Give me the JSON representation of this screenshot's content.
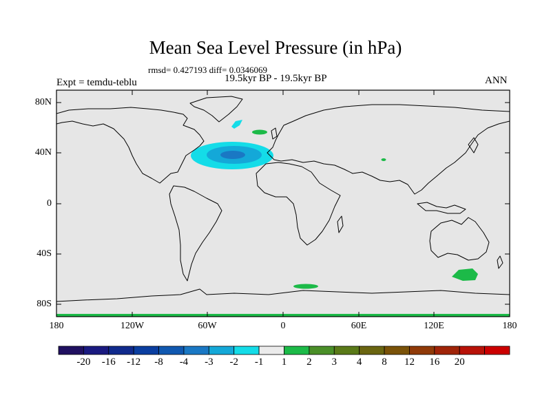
{
  "header": {
    "title": "Mean Sea Level Pressure (in hPa)",
    "stats": "rmsd= 0.427193 diff= 0.0346069",
    "subtitle": "19.5kyr BP - 19.5kyr BP",
    "experiment": "Expt = temdu-teblu",
    "season": "ANN"
  },
  "axes": {
    "y_ticks": [
      "80N",
      "40N",
      "0",
      "40S",
      "80S"
    ],
    "x_ticks": [
      "180",
      "120W",
      "60W",
      "0",
      "60E",
      "120E",
      "180"
    ]
  },
  "colorbar": {
    "colors": [
      "#201060",
      "#1a1a80",
      "#102a8c",
      "#0a3ea0",
      "#1058b0",
      "#1a78c4",
      "#14a8d8",
      "#14dce8",
      "#ebebeb",
      "#1cba48",
      "#4a8f28",
      "#5a7a18",
      "#6a6510",
      "#7a5208",
      "#903a08",
      "#a02408",
      "#b81208",
      "#cc0000"
    ],
    "labels": [
      "-20",
      "-16",
      "-12",
      "-8",
      "-4",
      "-3",
      "-2",
      "-1",
      "1",
      "2",
      "3",
      "4",
      "8",
      "12",
      "16",
      "20"
    ]
  },
  "map_colors": {
    "background": "#e6e6e6",
    "negative_light": "#14dce8",
    "negative_mid": "#14a8d8",
    "negative_dark": "#1a78c4",
    "positive": "#1cba48"
  }
}
